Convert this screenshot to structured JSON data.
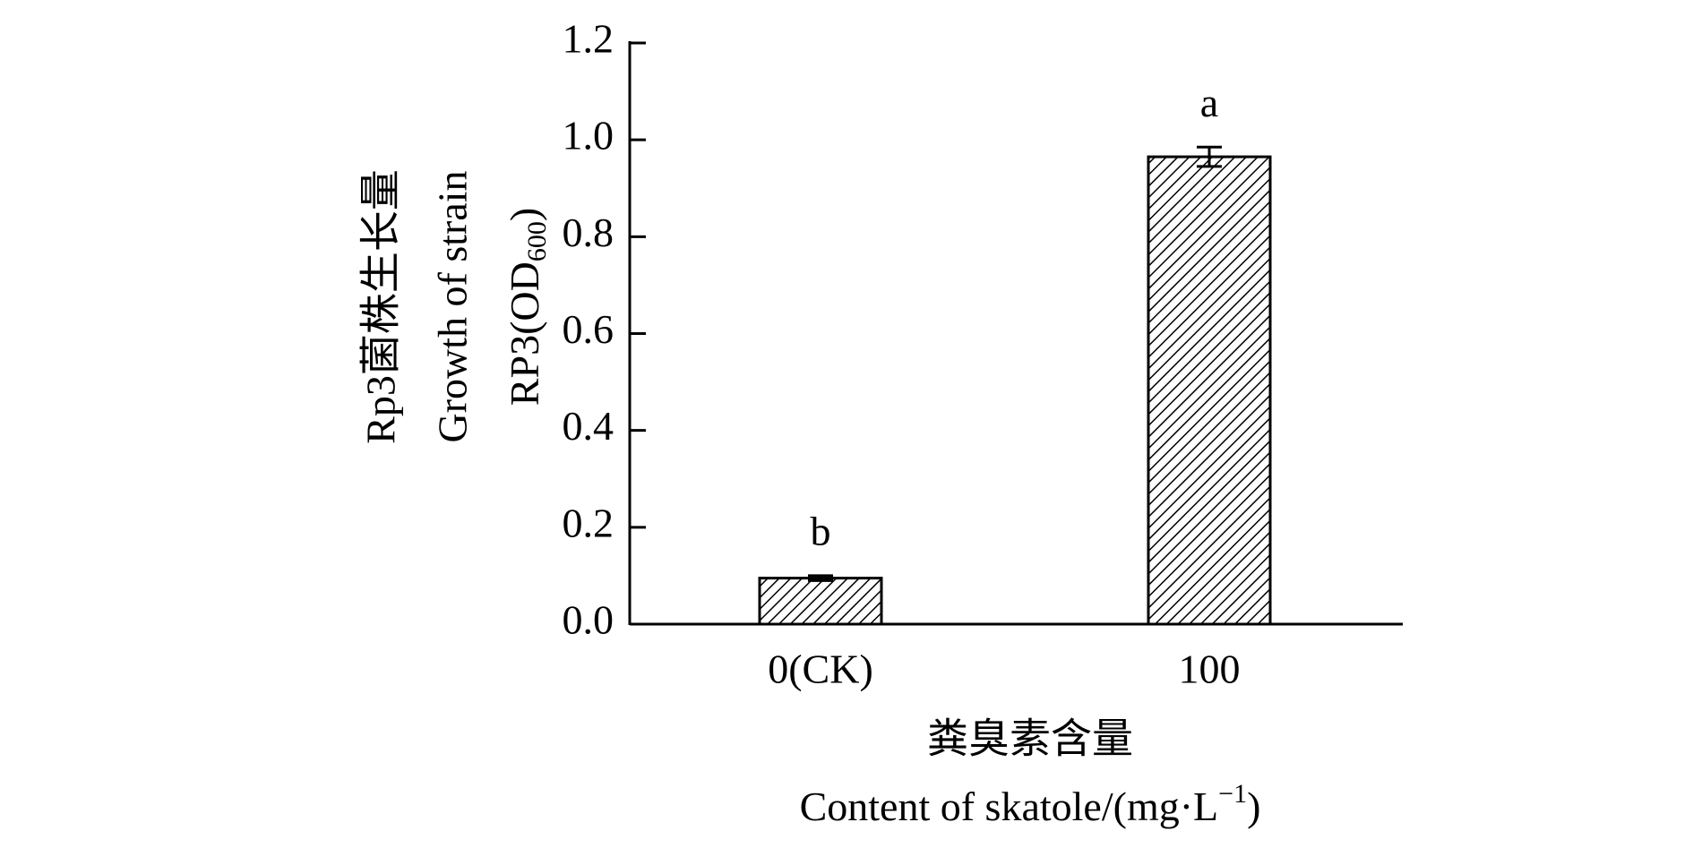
{
  "chart_data": {
    "type": "bar",
    "categories": [
      "0(CK)",
      "100"
    ],
    "values": [
      0.095,
      0.965
    ],
    "errors": [
      0.005,
      0.02
    ],
    "annotations": [
      "b",
      "a"
    ],
    "color": "#000000",
    "ylim": [
      0,
      1.2
    ],
    "yticks": [
      {
        "value": 0,
        "label": "0.0"
      },
      0.2,
      0.4,
      0.6,
      0.8,
      {
        "value": 1,
        "label": "1.0"
      },
      1.2
    ],
    "y_label": [
      "Rp3菌株生长量",
      "Growth of strain",
      [
        "RP3(OD",
        "600",
        ")"
      ]
    ],
    "x_label": [
      "粪臭素含量",
      [
        "Content of skatole/(mg·L",
        "−1",
        ")"
      ]
    ]
  }
}
